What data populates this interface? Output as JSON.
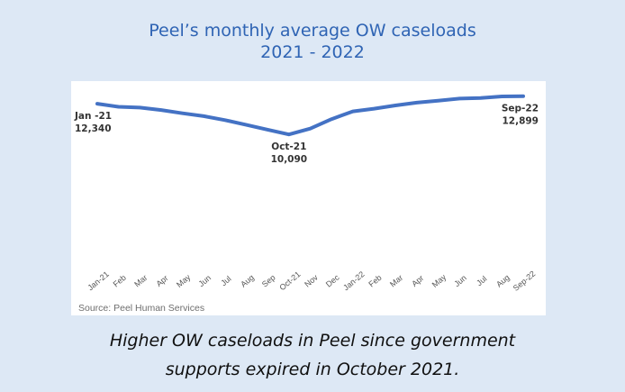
{
  "title_line1": "Peel’s monthly average OW caseloads",
  "title_line2": "2021 - 2022",
  "source": "Source: Peel Human Services",
  "caption_line1": "Higher OW caseloads in Peel since government",
  "caption_line2": "supports expired in October 2021.",
  "colors": {
    "line": "#4472c4",
    "background": "#dde8f5",
    "title": "#2f64b4"
  },
  "chart_data": {
    "type": "line",
    "categories": [
      "Jan-21",
      "Feb",
      "Mar",
      "Apr",
      "May",
      "Jun",
      "Jul",
      "Aug",
      "Sep",
      "Oct-21",
      "Nov",
      "Dec",
      "Jan-22",
      "Feb",
      "Mar",
      "Apr",
      "May",
      "Jun",
      "Jul",
      "Aug",
      "Sep-22"
    ],
    "series": [
      {
        "values": [
          12340,
          12120,
          12060,
          11880,
          11640,
          11430,
          11140,
          10790,
          10440,
          10090,
          10520,
          11210,
          11780,
          11980,
          12220,
          12420,
          12560,
          12720,
          12760,
          12880,
          12899
        ]
      }
    ],
    "annotations": [
      {
        "label": "Jan -21",
        "value": "12,340"
      },
      {
        "label": "Oct-21",
        "value": "10,090"
      },
      {
        "label": "Sep-22",
        "value": "12,899"
      }
    ],
    "ylim": [
      0,
      14000
    ],
    "grid": false,
    "legend": "none"
  }
}
